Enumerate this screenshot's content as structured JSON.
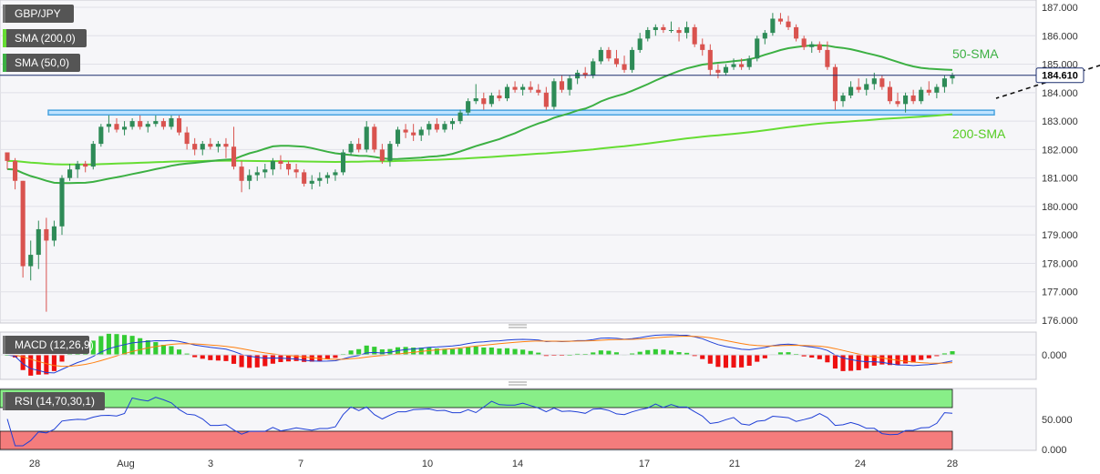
{
  "chart_data": {
    "type": "candlestick",
    "symbol": "GBP/JPY",
    "indicator_labels": {
      "sma200": "SMA (200,0)",
      "sma50": "SMA (50,0)",
      "macd": "MACD (12,26,9)",
      "rsi": "RSI (14,70,30,1)"
    },
    "annotations": {
      "sma50_label": "50-SMA",
      "sma200_label": "200-SMA"
    },
    "last_price": 184.61,
    "last_price_label": "184.610",
    "price_ticks": [
      "187.000",
      "186.000",
      "185.000",
      "184.000",
      "183.000",
      "182.000",
      "181.000",
      "180.000",
      "179.000",
      "178.000",
      "177.000",
      "176.000"
    ],
    "price_range": [
      176.0,
      187.2
    ],
    "macd_tick": "0.000",
    "rsi_ticks": [
      "50.000",
      "0.000"
    ],
    "rsi_levels": [
      70,
      30
    ],
    "date_labels": [
      "28",
      "Aug",
      "3",
      "7",
      "10",
      "14",
      "17",
      "21",
      "24",
      "28"
    ],
    "support_zone": [
      183.25,
      183.35
    ],
    "trendline": [
      [
        161,
        186.8
      ],
      [
        189,
        183.8
      ]
    ],
    "colors": {
      "up": "#2e8b57",
      "down": "#d9534f",
      "sma50": "#3cb043",
      "sma200": "#66dd33",
      "support": "#4aa3df",
      "badge": "#555555",
      "macd_line": "#1f3fd6",
      "signal_line": "#ff7f0e",
      "hist_pos": "#33cc33",
      "hist_neg": "#ee1111",
      "rsi_line": "#1f3fd6",
      "rsi_overbought": "#88ee88",
      "rsi_oversold": "#f47c7c"
    },
    "ohlc": [
      [
        181.9,
        181.9,
        181.3,
        181.6
      ],
      [
        181.6,
        181.7,
        180.6,
        180.9
      ],
      [
        180.9,
        180.9,
        177.5,
        177.9
      ],
      [
        177.9,
        178.8,
        177.4,
        178.3
      ],
      [
        178.3,
        179.5,
        177.8,
        179.2
      ],
      [
        179.2,
        179.6,
        176.3,
        178.8
      ],
      [
        178.8,
        179.5,
        178.6,
        179.3
      ],
      [
        179.3,
        181.1,
        179.0,
        181.0
      ],
      [
        181.0,
        181.5,
        180.9,
        181.3
      ],
      [
        181.3,
        181.6,
        181.0,
        181.5
      ],
      [
        181.5,
        181.6,
        181.2,
        181.4
      ],
      [
        181.4,
        182.3,
        181.3,
        182.2
      ],
      [
        182.2,
        182.9,
        182.1,
        182.8
      ],
      [
        182.8,
        183.2,
        182.6,
        182.9
      ],
      [
        182.9,
        183.1,
        182.6,
        182.7
      ],
      [
        182.7,
        183.0,
        182.5,
        182.8
      ],
      [
        182.8,
        183.1,
        182.7,
        183.0
      ],
      [
        183.0,
        183.2,
        182.7,
        182.8
      ],
      [
        182.8,
        183.0,
        182.6,
        182.9
      ],
      [
        182.9,
        183.2,
        182.8,
        183.0
      ],
      [
        183.0,
        183.1,
        182.7,
        182.8
      ],
      [
        182.8,
        183.2,
        182.7,
        183.1
      ],
      [
        183.1,
        183.2,
        182.5,
        182.6
      ],
      [
        182.6,
        182.8,
        182.0,
        182.2
      ],
      [
        182.2,
        182.4,
        181.8,
        182.0
      ],
      [
        182.0,
        182.3,
        181.8,
        182.2
      ],
      [
        182.2,
        182.4,
        182.0,
        182.1
      ],
      [
        182.1,
        182.3,
        181.9,
        182.2
      ],
      [
        182.2,
        182.4,
        181.7,
        182.1
      ],
      [
        182.1,
        182.8,
        181.3,
        181.4
      ],
      [
        181.4,
        181.6,
        180.5,
        180.9
      ],
      [
        180.9,
        181.3,
        180.6,
        181.1
      ],
      [
        181.1,
        181.4,
        180.9,
        181.2
      ],
      [
        181.2,
        181.5,
        181.0,
        181.3
      ],
      [
        181.3,
        181.7,
        181.1,
        181.6
      ],
      [
        181.6,
        181.8,
        181.3,
        181.5
      ],
      [
        181.5,
        181.6,
        181.1,
        181.3
      ],
      [
        181.3,
        181.5,
        181.0,
        181.2
      ],
      [
        181.2,
        181.3,
        180.7,
        180.8
      ],
      [
        180.8,
        181.1,
        180.6,
        180.9
      ],
      [
        180.9,
        181.2,
        180.7,
        181.0
      ],
      [
        181.0,
        181.2,
        180.8,
        181.1
      ],
      [
        181.1,
        181.3,
        180.9,
        181.2
      ],
      [
        181.2,
        182.0,
        181.1,
        181.9
      ],
      [
        181.9,
        182.3,
        181.8,
        182.2
      ],
      [
        182.2,
        182.4,
        181.9,
        182.0
      ],
      [
        182.0,
        183.0,
        181.9,
        182.8
      ],
      [
        182.8,
        182.9,
        181.9,
        182.0
      ],
      [
        182.0,
        182.2,
        181.5,
        181.6
      ],
      [
        181.6,
        182.3,
        181.4,
        182.2
      ],
      [
        182.2,
        182.8,
        182.1,
        182.7
      ],
      [
        182.7,
        182.9,
        182.4,
        182.6
      ],
      [
        182.6,
        182.9,
        182.3,
        182.5
      ],
      [
        182.5,
        182.8,
        182.3,
        182.7
      ],
      [
        182.7,
        183.0,
        182.5,
        182.9
      ],
      [
        182.9,
        183.1,
        182.6,
        182.7
      ],
      [
        182.7,
        183.0,
        182.6,
        182.9
      ],
      [
        182.9,
        183.1,
        182.7,
        183.0
      ],
      [
        183.0,
        183.4,
        182.9,
        183.3
      ],
      [
        183.3,
        183.8,
        183.2,
        183.7
      ],
      [
        183.7,
        184.3,
        183.6,
        183.8
      ],
      [
        183.8,
        184.0,
        183.4,
        183.6
      ],
      [
        183.6,
        184.0,
        183.5,
        183.9
      ],
      [
        183.9,
        184.1,
        183.7,
        183.8
      ],
      [
        183.8,
        184.3,
        183.7,
        184.2
      ],
      [
        184.2,
        184.4,
        184.0,
        184.1
      ],
      [
        184.1,
        184.3,
        183.9,
        184.2
      ],
      [
        184.2,
        184.4,
        184.0,
        184.1
      ],
      [
        184.1,
        184.3,
        183.9,
        184.0
      ],
      [
        184.0,
        184.2,
        183.4,
        183.5
      ],
      [
        183.5,
        184.5,
        183.4,
        184.4
      ],
      [
        184.4,
        184.6,
        184.0,
        184.1
      ],
      [
        184.1,
        184.6,
        183.9,
        184.5
      ],
      [
        184.5,
        184.8,
        184.3,
        184.7
      ],
      [
        184.7,
        184.9,
        184.5,
        184.6
      ],
      [
        184.6,
        185.2,
        184.5,
        185.1
      ],
      [
        185.1,
        185.6,
        185.0,
        185.5
      ],
      [
        185.5,
        185.6,
        185.1,
        185.2
      ],
      [
        185.2,
        185.5,
        184.9,
        185.0
      ],
      [
        185.0,
        185.3,
        184.7,
        184.8
      ],
      [
        184.8,
        185.6,
        184.7,
        185.5
      ],
      [
        185.5,
        186.1,
        185.4,
        185.9
      ],
      [
        185.9,
        186.3,
        185.8,
        186.2
      ],
      [
        186.2,
        186.4,
        186.0,
        186.3
      ],
      [
        186.3,
        186.4,
        186.1,
        186.2
      ],
      [
        186.2,
        186.5,
        186.1,
        186.2
      ],
      [
        186.2,
        186.3,
        185.8,
        186.1
      ],
      [
        186.1,
        186.5,
        185.9,
        186.3
      ],
      [
        186.3,
        186.4,
        185.6,
        185.7
      ],
      [
        185.7,
        185.9,
        185.3,
        185.5
      ],
      [
        185.5,
        185.7,
        184.6,
        184.8
      ],
      [
        184.8,
        185.0,
        184.5,
        184.7
      ],
      [
        184.7,
        185.0,
        184.6,
        184.9
      ],
      [
        184.9,
        185.2,
        184.8,
        185.0
      ],
      [
        185.0,
        185.2,
        184.8,
        184.9
      ],
      [
        184.9,
        185.3,
        184.8,
        185.2
      ],
      [
        185.2,
        186.0,
        185.1,
        185.9
      ],
      [
        185.9,
        186.2,
        185.7,
        186.1
      ],
      [
        186.1,
        186.8,
        186.0,
        186.6
      ],
      [
        186.6,
        186.8,
        186.4,
        186.5
      ],
      [
        186.5,
        186.7,
        186.2,
        186.3
      ],
      [
        186.3,
        186.4,
        185.8,
        185.9
      ],
      [
        185.9,
        186.0,
        185.5,
        185.6
      ],
      [
        185.6,
        185.8,
        185.4,
        185.7
      ],
      [
        185.7,
        185.8,
        185.4,
        185.5
      ],
      [
        185.5,
        185.8,
        184.8,
        184.9
      ],
      [
        184.9,
        185.0,
        183.4,
        183.7
      ],
      [
        183.7,
        184.0,
        183.5,
        183.9
      ],
      [
        183.9,
        184.4,
        183.8,
        184.2
      ],
      [
        184.2,
        184.5,
        184.0,
        184.1
      ],
      [
        184.1,
        184.5,
        183.9,
        184.3
      ],
      [
        184.3,
        184.7,
        184.1,
        184.5
      ],
      [
        184.5,
        184.6,
        184.1,
        184.2
      ],
      [
        184.2,
        184.4,
        183.6,
        183.7
      ],
      [
        183.7,
        184.0,
        183.5,
        183.6
      ],
      [
        183.6,
        184.0,
        183.3,
        183.9
      ],
      [
        183.9,
        184.1,
        183.6,
        183.7
      ],
      [
        183.7,
        184.2,
        183.6,
        184.1
      ],
      [
        184.1,
        184.4,
        183.9,
        184.0
      ],
      [
        184.0,
        184.3,
        183.8,
        184.2
      ],
      [
        184.2,
        184.6,
        184.0,
        184.5
      ],
      [
        184.5,
        184.7,
        184.3,
        184.61
      ]
    ]
  }
}
